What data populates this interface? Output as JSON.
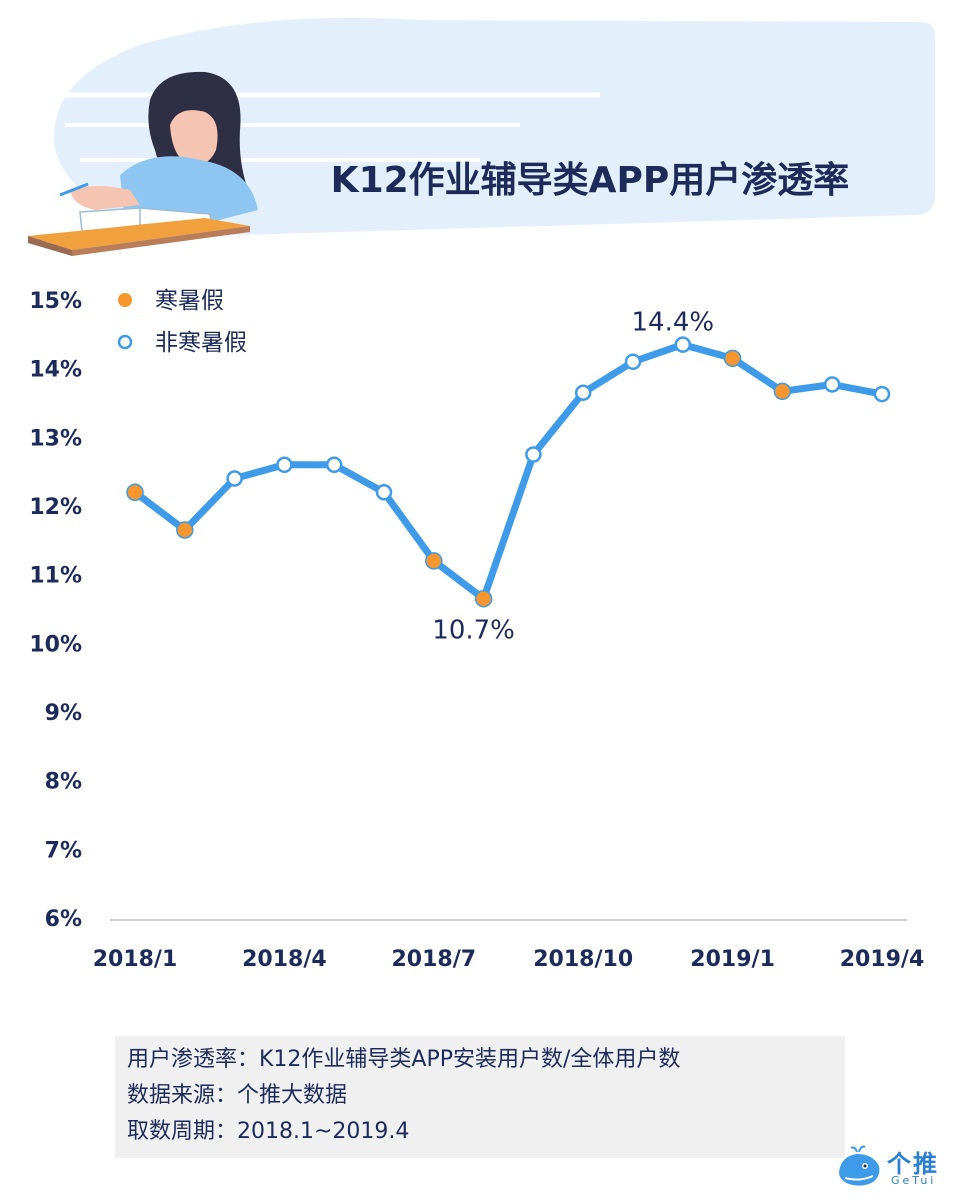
{
  "chart_data": {
    "type": "line",
    "title": "K12作业辅导类APP用户渗透率",
    "xlabel": "",
    "ylabel": "",
    "ylim": [
      6,
      15
    ],
    "y_ticks": [
      "15%",
      "14%",
      "13%",
      "12%",
      "11%",
      "10%",
      "9%",
      "8%",
      "7%",
      "6%"
    ],
    "y_tick_values": [
      15,
      14,
      13,
      12,
      11,
      10,
      9,
      8,
      7,
      6
    ],
    "x_tick_labels": [
      "2018/1",
      "2018/4",
      "2018/7",
      "2018/10",
      "2019/1",
      "2019/4"
    ],
    "x_tick_indices": [
      0,
      3,
      6,
      9,
      12,
      15
    ],
    "categories": [
      "2018/1",
      "2018/2",
      "2018/3",
      "2018/4",
      "2018/5",
      "2018/6",
      "2018/7",
      "2018/8",
      "2018/9",
      "2018/10",
      "2018/11",
      "2018/12",
      "2019/1",
      "2019/2",
      "2019/3",
      "2019/4"
    ],
    "values": [
      12.2,
      11.65,
      12.4,
      12.6,
      12.6,
      12.2,
      11.2,
      10.65,
      12.75,
      13.65,
      14.1,
      14.35,
      14.15,
      13.67,
      13.77,
      13.63
    ],
    "holiday": [
      true,
      true,
      false,
      false,
      false,
      false,
      true,
      true,
      false,
      false,
      false,
      false,
      true,
      true,
      false,
      false
    ],
    "annotations": [
      {
        "index": 7,
        "text": "10.7%",
        "position": "below"
      },
      {
        "index": 11,
        "text": "14.4%",
        "position": "above"
      }
    ],
    "legend": [
      {
        "label": "寒暑假",
        "marker": "filled"
      },
      {
        "label": "非寒暑假",
        "marker": "hollow"
      }
    ],
    "legend_position": "top-left",
    "grid": false,
    "colors": {
      "line": "#3d9be9",
      "holiday_marker": "#f5962f",
      "non_holiday_marker": "#ffffff",
      "text": "#1c2b5a",
      "axis": "#cfcfcf"
    }
  },
  "notes": [
    "用户渗透率：K12作业辅导类APP安装用户数/全体用户数",
    "数据来源：个推大数据",
    "取数周期：2018.1~2019.4"
  ],
  "logo": {
    "name": "个推",
    "sub": "GeTui",
    "icon": "whale-icon"
  }
}
